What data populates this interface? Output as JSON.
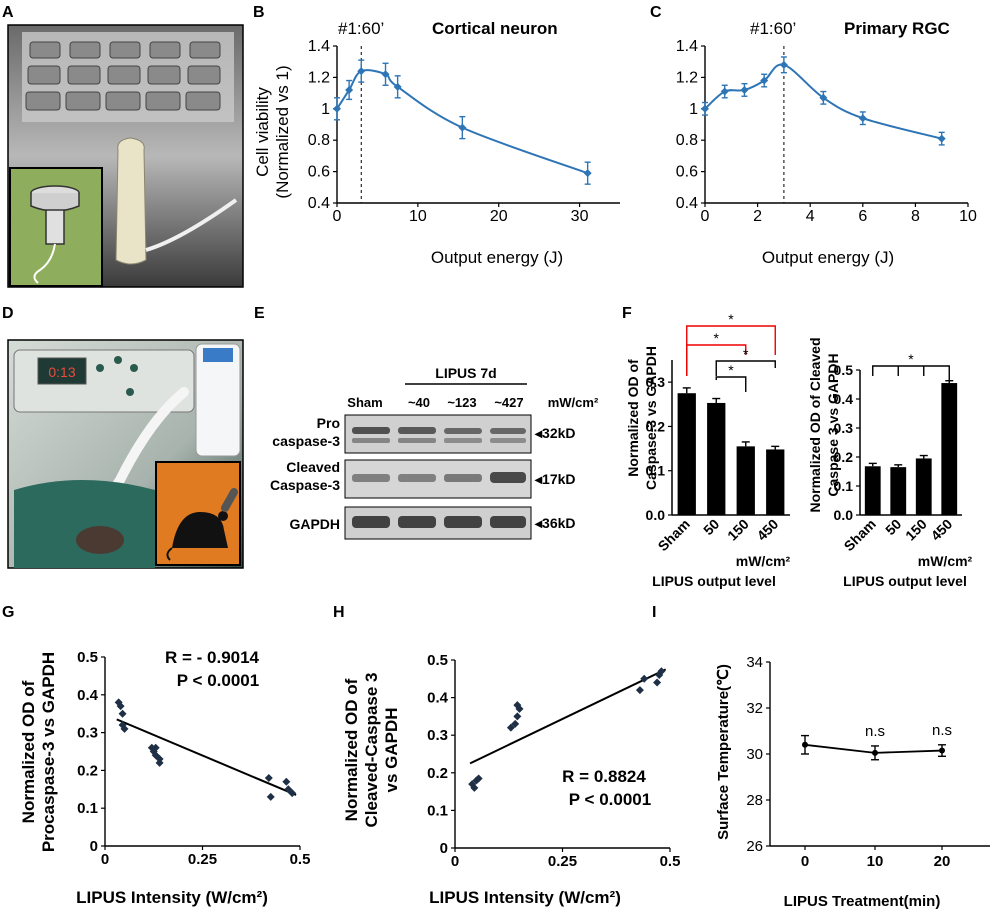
{
  "panel_labels": {
    "a": "A",
    "b": "B",
    "c": "C",
    "d": "D",
    "e": "E",
    "f": "F",
    "g": "G",
    "h": "H",
    "i": "I"
  },
  "panel_b": {
    "title_prefix": "#1:60’",
    "title_bold": "Cortical neuron",
    "ylabel_1": "Cell viability",
    "ylabel_2": "(Normalized vs 1)",
    "xlabel": "Output energy (J)",
    "xticks": [
      "0",
      "10",
      "20",
      "30"
    ],
    "yticks": [
      "0.4",
      "0.6",
      "0.8",
      "1",
      "1.2",
      "1.4"
    ]
  },
  "panel_c": {
    "title_prefix": "#1:60’",
    "title_bold": "Primary RGC",
    "xlabel": "Output energy (J)",
    "xticks": [
      "0",
      "2",
      "4",
      "6",
      "8",
      "10"
    ],
    "yticks": [
      "0.4",
      "0.6",
      "0.8",
      "1",
      "1.2",
      "1.4"
    ]
  },
  "panel_e": {
    "lipus_label": "LIPUS 7d",
    "lanes": [
      "Sham",
      "~40",
      "~123",
      "~427"
    ],
    "unit": "mW/cm²",
    "bands": [
      "Pro caspase-3",
      "Cleaved Caspase-3",
      "GAPDH"
    ],
    "band_line1": [
      "Pro",
      "Cleaved"
    ],
    "band_line2": [
      "caspase-3",
      "Caspase-3"
    ],
    "sizes": [
      "◂32kD",
      "◂17kD",
      "◂36kD"
    ]
  },
  "panel_f": {
    "left_ylabel_1": "Normalized OD of",
    "left_ylabel_2": "Caspase-3 vs GAPDH",
    "right_ylabel_1": "Normalized OD of Cleaved",
    "right_ylabel_2": "Caspase 3 vs GAPDH",
    "unit": "mW/cm²",
    "xlabel": "LIPUS output level",
    "star": "*",
    "left_yticks": [
      "0.0",
      "0.1",
      "0.2",
      "0.3"
    ],
    "right_yticks": [
      "0.0",
      "0.1",
      "0.2",
      "0.3",
      "0.4",
      "0.5"
    ]
  },
  "panel_g": {
    "ylabel_1": "Normalized OD of",
    "ylabel_2": "Procaspase-3 vs GAPDH",
    "xlabel": "LIPUS Intensity (W/cm²)",
    "r_text": "R = - 0.9014",
    "p_text": "P < 0.0001",
    "xticks": [
      "0",
      "0.25",
      "0.5"
    ],
    "yticks": [
      "0",
      "0.1",
      "0.2",
      "0.3",
      "0.4",
      "0.5"
    ]
  },
  "panel_h": {
    "ylabel_1": "Normalized OD of",
    "ylabel_2": "Cleaved-Caspase 3",
    "ylabel_3": "vs GAPDH",
    "xlabel": "LIPUS Intensity (W/cm²)",
    "r_text": "R = 0.8824",
    "p_text": "P < 0.0001",
    "xticks": [
      "0",
      "0.25",
      "0.5"
    ],
    "yticks": [
      "0",
      "0.1",
      "0.2",
      "0.3",
      "0.4",
      "0.5"
    ]
  },
  "panel_i": {
    "ylabel": "Surface Temperature(℃)",
    "xlabel": "LIPUS Treatment(min)",
    "ns": "n.s",
    "xticks": [
      "0",
      "10",
      "20"
    ],
    "yticks": [
      "26",
      "28",
      "30",
      "32",
      "34"
    ]
  },
  "chart_data": [
    {
      "id": "B",
      "type": "line",
      "title": "#1:60’ Cortical neuron",
      "xlabel": "Output energy (J)",
      "ylabel": "Cell viability (Normalized vs 1)",
      "xlim": [
        0,
        35
      ],
      "ylim": [
        0.4,
        1.4
      ],
      "x": [
        0,
        1.5,
        3,
        6,
        7.5,
        15.5,
        31
      ],
      "y": [
        1.0,
        1.12,
        1.24,
        1.22,
        1.14,
        0.88,
        0.59
      ],
      "err": [
        0.07,
        0.06,
        0.07,
        0.07,
        0.07,
        0.07,
        0.07
      ],
      "vline": 3,
      "color": "#2e75b6"
    },
    {
      "id": "C",
      "type": "line",
      "title": "#1:60’ Primary RGC",
      "xlabel": "Output energy (J)",
      "ylim": [
        0.4,
        1.4
      ],
      "xlim": [
        0,
        10
      ],
      "x": [
        0,
        0.75,
        1.5,
        2.25,
        3,
        4.5,
        6,
        9
      ],
      "y": [
        1.0,
        1.11,
        1.12,
        1.18,
        1.28,
        1.07,
        0.94,
        0.81
      ],
      "err": [
        0.04,
        0.04,
        0.04,
        0.04,
        0.05,
        0.04,
        0.04,
        0.04
      ],
      "vline": 3,
      "color": "#2e75b6"
    },
    {
      "id": "F-left",
      "type": "bar",
      "categories": [
        "Sham",
        "50",
        "150",
        "450"
      ],
      "values": [
        0.275,
        0.253,
        0.155,
        0.148
      ],
      "err": [
        0.012,
        0.01,
        0.01,
        0.007
      ],
      "ylim": [
        0,
        0.35
      ],
      "xlabel": "LIPUS output level"
    },
    {
      "id": "F-right",
      "type": "bar",
      "categories": [
        "Sham",
        "50",
        "150",
        "450"
      ],
      "values": [
        0.168,
        0.165,
        0.195,
        0.455
      ],
      "err": [
        0.01,
        0.008,
        0.01,
        0.008
      ],
      "ylim": [
        0,
        0.5
      ],
      "xlabel": "LIPUS output level"
    },
    {
      "id": "G",
      "type": "scatter",
      "xlim": [
        0,
        0.5
      ],
      "ylim": [
        0,
        0.5
      ],
      "x": [
        0.035,
        0.04,
        0.045,
        0.045,
        0.05,
        0.12,
        0.125,
        0.13,
        0.13,
        0.14,
        0.14,
        0.42,
        0.425,
        0.465,
        0.47,
        0.48
      ],
      "y": [
        0.38,
        0.37,
        0.35,
        0.32,
        0.31,
        0.26,
        0.25,
        0.26,
        0.24,
        0.22,
        0.23,
        0.18,
        0.13,
        0.17,
        0.15,
        0.14
      ],
      "fit": {
        "x": [
          0.03,
          0.49
        ],
        "y": [
          0.335,
          0.135
        ]
      },
      "r": "-0.9014",
      "p": "< 0.0001"
    },
    {
      "id": "H",
      "type": "scatter",
      "xlim": [
        0,
        0.5
      ],
      "ylim": [
        0,
        0.5
      ],
      "x": [
        0.04,
        0.045,
        0.05,
        0.055,
        0.13,
        0.14,
        0.145,
        0.15,
        0.145,
        0.43,
        0.44,
        0.47,
        0.475,
        0.48
      ],
      "y": [
        0.17,
        0.16,
        0.18,
        0.185,
        0.32,
        0.33,
        0.35,
        0.37,
        0.38,
        0.42,
        0.45,
        0.44,
        0.46,
        0.47
      ],
      "fit": {
        "x": [
          0.035,
          0.49
        ],
        "y": [
          0.225,
          0.475
        ]
      },
      "r": "0.8824",
      "p": "< 0.0001"
    },
    {
      "id": "I",
      "type": "line",
      "xlabel": "LIPUS Treatment(min)",
      "ylabel": "Surface Temperature(℃)",
      "ylim": [
        26,
        34
      ],
      "x": [
        0,
        10,
        20
      ],
      "y": [
        30.4,
        30.05,
        30.15
      ],
      "err": [
        0.4,
        0.3,
        0.25
      ]
    }
  ]
}
